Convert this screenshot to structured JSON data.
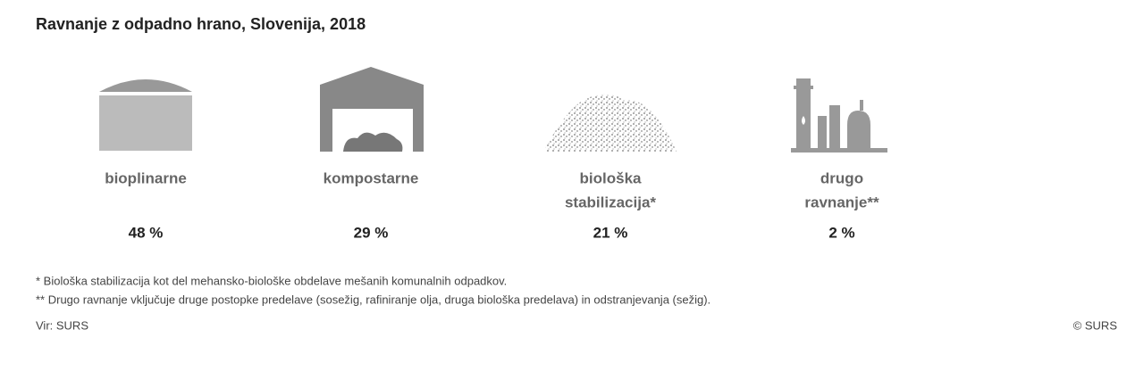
{
  "title": "Ravnanje z odpadno hrano, Slovenija, 2018",
  "items": [
    {
      "label": [
        "bioplinarne"
      ],
      "value": "48 %"
    },
    {
      "label": [
        "kompostarne"
      ],
      "value": "29 %"
    },
    {
      "label": [
        "biološka",
        "stabilizacija*"
      ],
      "value": "21 %"
    },
    {
      "label": [
        "drugo",
        "ravnanje**"
      ],
      "value": "2 %"
    }
  ],
  "footnotes": [
    "* Biološka stabilizacija kot del mehansko-biološke obdelave mešanih komunalnih odpadkov.",
    "** Drugo ravnanje vključuje druge postopke predelave (sosežig, rafiniranje olja, druga biološka predelava) in odstranjevanja (sežig)."
  ],
  "source": "Vir: SURS",
  "copyright": "© SURS"
}
